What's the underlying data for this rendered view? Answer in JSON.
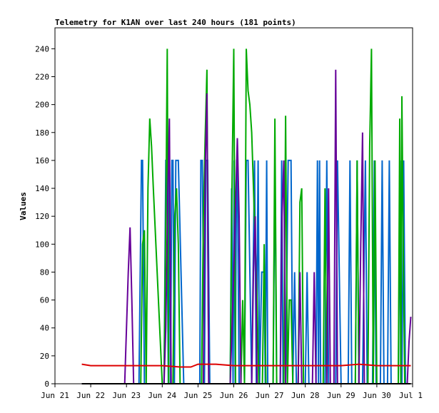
{
  "chart_data": {
    "type": "line",
    "title": "Telemetry for K1AN over last 240 hours (181 points)",
    "xlabel": "",
    "ylabel": "Values",
    "ylim": [
      0,
      255
    ],
    "xlim": [
      "Jun 21",
      "Jul 1"
    ],
    "x_ticks": [
      "Jun 21",
      "Jun 22",
      "Jun 23",
      "Jun 24",
      "Jun 25",
      "Jun 26",
      "Jun 27",
      "Jun 28",
      "Jun 29",
      "Jun 30",
      "Jul 1"
    ],
    "y_ticks": [
      0,
      20,
      40,
      60,
      80,
      100,
      120,
      140,
      160,
      180,
      200,
      220,
      240
    ],
    "grid": false,
    "legend": "none",
    "x_unit": "days since Jun 21",
    "series": [
      {
        "color": "#0066cc",
        "points": [
          [
            0.75,
            0
          ],
          [
            2.35,
            0
          ],
          [
            2.42,
            160
          ],
          [
            2.45,
            160
          ],
          [
            2.5,
            0
          ],
          [
            3.05,
            0
          ],
          [
            3.1,
            160
          ],
          [
            3.13,
            160
          ],
          [
            3.17,
            0
          ],
          [
            3.2,
            160
          ],
          [
            3.23,
            0
          ],
          [
            3.27,
            160
          ],
          [
            3.3,
            160
          ],
          [
            3.34,
            0
          ],
          [
            3.38,
            160
          ],
          [
            3.45,
            160
          ],
          [
            3.6,
            0
          ],
          [
            4.05,
            0
          ],
          [
            4.08,
            160
          ],
          [
            4.12,
            160
          ],
          [
            4.18,
            0
          ],
          [
            4.22,
            160
          ],
          [
            4.27,
            160
          ],
          [
            4.33,
            0
          ],
          [
            4.9,
            0
          ],
          [
            4.94,
            140
          ],
          [
            4.98,
            0
          ],
          [
            5.01,
            160
          ],
          [
            5.04,
            0
          ],
          [
            5.08,
            160
          ],
          [
            5.1,
            160
          ],
          [
            5.15,
            0
          ],
          [
            5.3,
            0
          ],
          [
            5.35,
            160
          ],
          [
            5.4,
            160
          ],
          [
            5.5,
            0
          ],
          [
            5.58,
            160
          ],
          [
            5.63,
            0
          ],
          [
            5.68,
            160
          ],
          [
            5.72,
            0
          ],
          [
            5.78,
            80
          ],
          [
            5.85,
            80
          ],
          [
            5.88,
            0
          ],
          [
            5.92,
            160
          ],
          [
            5.95,
            0
          ],
          [
            6.1,
            0
          ],
          [
            6.15,
            160
          ],
          [
            6.2,
            0
          ],
          [
            6.3,
            0
          ],
          [
            6.34,
            160
          ],
          [
            6.38,
            0
          ],
          [
            6.45,
            0
          ],
          [
            6.52,
            160
          ],
          [
            6.6,
            160
          ],
          [
            6.65,
            0
          ],
          [
            6.7,
            80
          ],
          [
            6.75,
            0
          ],
          [
            7.0,
            0
          ],
          [
            7.05,
            80
          ],
          [
            7.1,
            0
          ],
          [
            7.3,
            0
          ],
          [
            7.34,
            160
          ],
          [
            7.37,
            0
          ],
          [
            7.4,
            160
          ],
          [
            7.43,
            0
          ],
          [
            7.55,
            0
          ],
          [
            7.6,
            160
          ],
          [
            7.65,
            0
          ],
          [
            7.85,
            0
          ],
          [
            7.9,
            160
          ],
          [
            7.95,
            80
          ],
          [
            8.0,
            0
          ],
          [
            8.2,
            0
          ],
          [
            8.25,
            160
          ],
          [
            8.3,
            0
          ],
          [
            8.4,
            0
          ],
          [
            8.45,
            160
          ],
          [
            8.5,
            0
          ],
          [
            8.6,
            0
          ],
          [
            8.68,
            160
          ],
          [
            8.73,
            0
          ],
          [
            8.88,
            0
          ],
          [
            8.93,
            160
          ],
          [
            8.98,
            0
          ],
          [
            9.1,
            0
          ],
          [
            9.15,
            160
          ],
          [
            9.2,
            0
          ],
          [
            9.3,
            0
          ],
          [
            9.35,
            160
          ],
          [
            9.4,
            0
          ],
          [
            9.6,
            0
          ],
          [
            9.65,
            160
          ],
          [
            9.7,
            0
          ],
          [
            9.75,
            160
          ],
          [
            9.8,
            0
          ],
          [
            9.95,
            0
          ]
        ]
      },
      {
        "color": "#00aa00",
        "points": [
          [
            0.75,
            0
          ],
          [
            2.4,
            0
          ],
          [
            2.45,
            100
          ],
          [
            2.5,
            110
          ],
          [
            2.55,
            0
          ],
          [
            2.6,
            140
          ],
          [
            2.65,
            190
          ],
          [
            2.7,
            170
          ],
          [
            2.75,
            140
          ],
          [
            3.0,
            0
          ],
          [
            3.05,
            0
          ],
          [
            3.1,
            120
          ],
          [
            3.14,
            240
          ],
          [
            3.18,
            0
          ],
          [
            3.3,
            0
          ],
          [
            3.35,
            120
          ],
          [
            3.4,
            140
          ],
          [
            3.45,
            100
          ],
          [
            3.5,
            0
          ],
          [
            4.1,
            0
          ],
          [
            4.15,
            120
          ],
          [
            4.2,
            176
          ],
          [
            4.25,
            225
          ],
          [
            4.3,
            0
          ],
          [
            4.9,
            0
          ],
          [
            4.95,
            140
          ],
          [
            5.0,
            240
          ],
          [
            5.05,
            0
          ],
          [
            5.2,
            0
          ],
          [
            5.25,
            60
          ],
          [
            5.3,
            0
          ],
          [
            5.35,
            240
          ],
          [
            5.4,
            210
          ],
          [
            5.45,
            200
          ],
          [
            5.5,
            180
          ],
          [
            5.55,
            140
          ],
          [
            5.6,
            100
          ],
          [
            5.65,
            60
          ],
          [
            5.7,
            0
          ],
          [
            5.8,
            0
          ],
          [
            5.85,
            100
          ],
          [
            5.9,
            0
          ],
          [
            6.1,
            0
          ],
          [
            6.15,
            190
          ],
          [
            6.2,
            0
          ],
          [
            6.4,
            0
          ],
          [
            6.45,
            192
          ],
          [
            6.5,
            0
          ],
          [
            6.55,
            60
          ],
          [
            6.6,
            60
          ],
          [
            6.65,
            0
          ],
          [
            6.8,
            0
          ],
          [
            6.85,
            130
          ],
          [
            6.9,
            140
          ],
          [
            6.95,
            0
          ],
          [
            7.5,
            0
          ],
          [
            7.55,
            140
          ],
          [
            7.6,
            0
          ],
          [
            8.4,
            0
          ],
          [
            8.45,
            160
          ],
          [
            8.5,
            0
          ],
          [
            8.75,
            0
          ],
          [
            8.8,
            170
          ],
          [
            8.85,
            240
          ],
          [
            8.9,
            0
          ],
          [
            8.95,
            160
          ],
          [
            9.0,
            0
          ],
          [
            9.6,
            0
          ],
          [
            9.64,
            190
          ],
          [
            9.67,
            0
          ],
          [
            9.7,
            206
          ],
          [
            9.73,
            120
          ],
          [
            9.78,
            0
          ],
          [
            9.95,
            0
          ]
        ]
      },
      {
        "color": "#660099",
        "points": [
          [
            0.75,
            0
          ],
          [
            1.95,
            0
          ],
          [
            2.0,
            40
          ],
          [
            2.05,
            80
          ],
          [
            2.1,
            112
          ],
          [
            2.15,
            60
          ],
          [
            2.2,
            0
          ],
          [
            3.05,
            0
          ],
          [
            3.1,
            40
          ],
          [
            3.15,
            128
          ],
          [
            3.2,
            190
          ],
          [
            3.25,
            0
          ],
          [
            4.15,
            0
          ],
          [
            4.2,
            150
          ],
          [
            4.25,
            208
          ],
          [
            4.3,
            0
          ],
          [
            4.9,
            0
          ],
          [
            4.95,
            40
          ],
          [
            5.0,
            80
          ],
          [
            5.05,
            128
          ],
          [
            5.1,
            176
          ],
          [
            5.15,
            120
          ],
          [
            5.2,
            0
          ],
          [
            5.5,
            0
          ],
          [
            5.55,
            80
          ],
          [
            5.6,
            120
          ],
          [
            5.65,
            0
          ],
          [
            6.3,
            0
          ],
          [
            6.35,
            120
          ],
          [
            6.4,
            160
          ],
          [
            6.45,
            0
          ],
          [
            6.8,
            0
          ],
          [
            6.85,
            80
          ],
          [
            6.9,
            0
          ],
          [
            7.2,
            0
          ],
          [
            7.25,
            80
          ],
          [
            7.3,
            0
          ],
          [
            7.6,
            0
          ],
          [
            7.65,
            140
          ],
          [
            7.7,
            0
          ],
          [
            7.8,
            0
          ],
          [
            7.85,
            225
          ],
          [
            7.9,
            0
          ],
          [
            8.5,
            0
          ],
          [
            8.55,
            100
          ],
          [
            8.6,
            180
          ],
          [
            8.65,
            0
          ],
          [
            9.85,
            0
          ],
          [
            9.9,
            30
          ],
          [
            9.95,
            48
          ]
        ]
      },
      {
        "color": "#dd0000",
        "points": [
          [
            0.75,
            14
          ],
          [
            1.0,
            13
          ],
          [
            1.5,
            13
          ],
          [
            2.0,
            13
          ],
          [
            2.5,
            13
          ],
          [
            3.0,
            13
          ],
          [
            3.5,
            12
          ],
          [
            3.8,
            12
          ],
          [
            4.0,
            14
          ],
          [
            4.5,
            14
          ],
          [
            5.0,
            13
          ],
          [
            5.5,
            13
          ],
          [
            6.0,
            13
          ],
          [
            6.5,
            13
          ],
          [
            7.0,
            13
          ],
          [
            7.5,
            13
          ],
          [
            8.0,
            13
          ],
          [
            8.5,
            14
          ],
          [
            9.0,
            13
          ],
          [
            9.5,
            13
          ],
          [
            9.95,
            13
          ]
        ]
      },
      {
        "color": "#000000",
        "points": [
          [
            0.75,
            0
          ],
          [
            9.95,
            0
          ]
        ]
      }
    ]
  }
}
